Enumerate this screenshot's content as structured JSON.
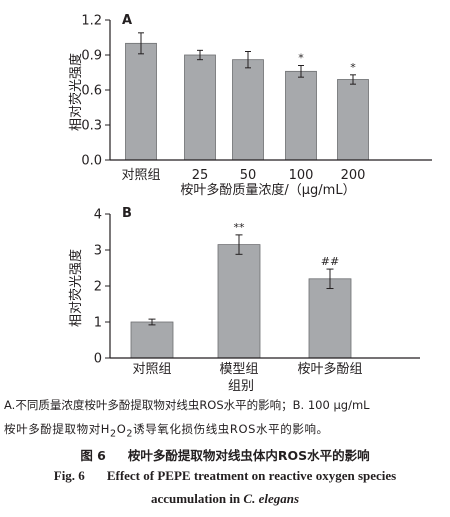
{
  "chart_data": [
    {
      "type": "bar",
      "panel_label": "A",
      "categories": [
        "对照组",
        "25",
        "50",
        "100",
        "200"
      ],
      "values": [
        1.0,
        0.9,
        0.86,
        0.76,
        0.69
      ],
      "errors": [
        0.09,
        0.04,
        0.07,
        0.05,
        0.04
      ],
      "annotations": [
        "",
        "",
        "",
        "*",
        "*"
      ],
      "ylabel": "相对荧光强度",
      "xlabel": "桉叶多酚质量浓度/（μg/mL）",
      "ylim": [
        0,
        1.2
      ],
      "yticks": [
        "0.0",
        "0.3",
        "0.6",
        "0.9",
        "1.2"
      ],
      "bar_color": "#a7a9ac",
      "grid": false
    },
    {
      "type": "bar",
      "panel_label": "B",
      "categories": [
        "对照组",
        "模型组",
        "桉叶多酚组"
      ],
      "values": [
        1.0,
        3.15,
        2.2
      ],
      "errors": [
        0.08,
        0.27,
        0.27
      ],
      "annotations": [
        "",
        "**",
        "##"
      ],
      "ylabel": "相对荧光强度",
      "xlabel": "组别",
      "ylim": [
        0,
        4
      ],
      "yticks": [
        "0",
        "1",
        "2",
        "3",
        "4"
      ],
      "bar_color": "#a7a9ac",
      "grid": false
    }
  ],
  "caption": {
    "note_line1": "A.不同质量浓度桉叶多酚提取物对线虫ROS水平的影响；B. 100 μg/mL",
    "note_line2_pre": "桉叶多酚提取物对H",
    "note_line2_sub1": "2",
    "note_line2_mid": "O",
    "note_line2_sub2": "2",
    "note_line2_post": "诱导氧化损伤线虫ROS水平的影响。",
    "cn_fig": "图 6",
    "cn_title": "桉叶多酚提取物对线虫体内ROS水平的影响",
    "en_fig": "Fig. 6",
    "en_title_1": "Effect of PEPE treatment on reactive oxygen species",
    "en_title_2_pre": "accumulation in ",
    "en_title_2_species": "C. elegans"
  }
}
